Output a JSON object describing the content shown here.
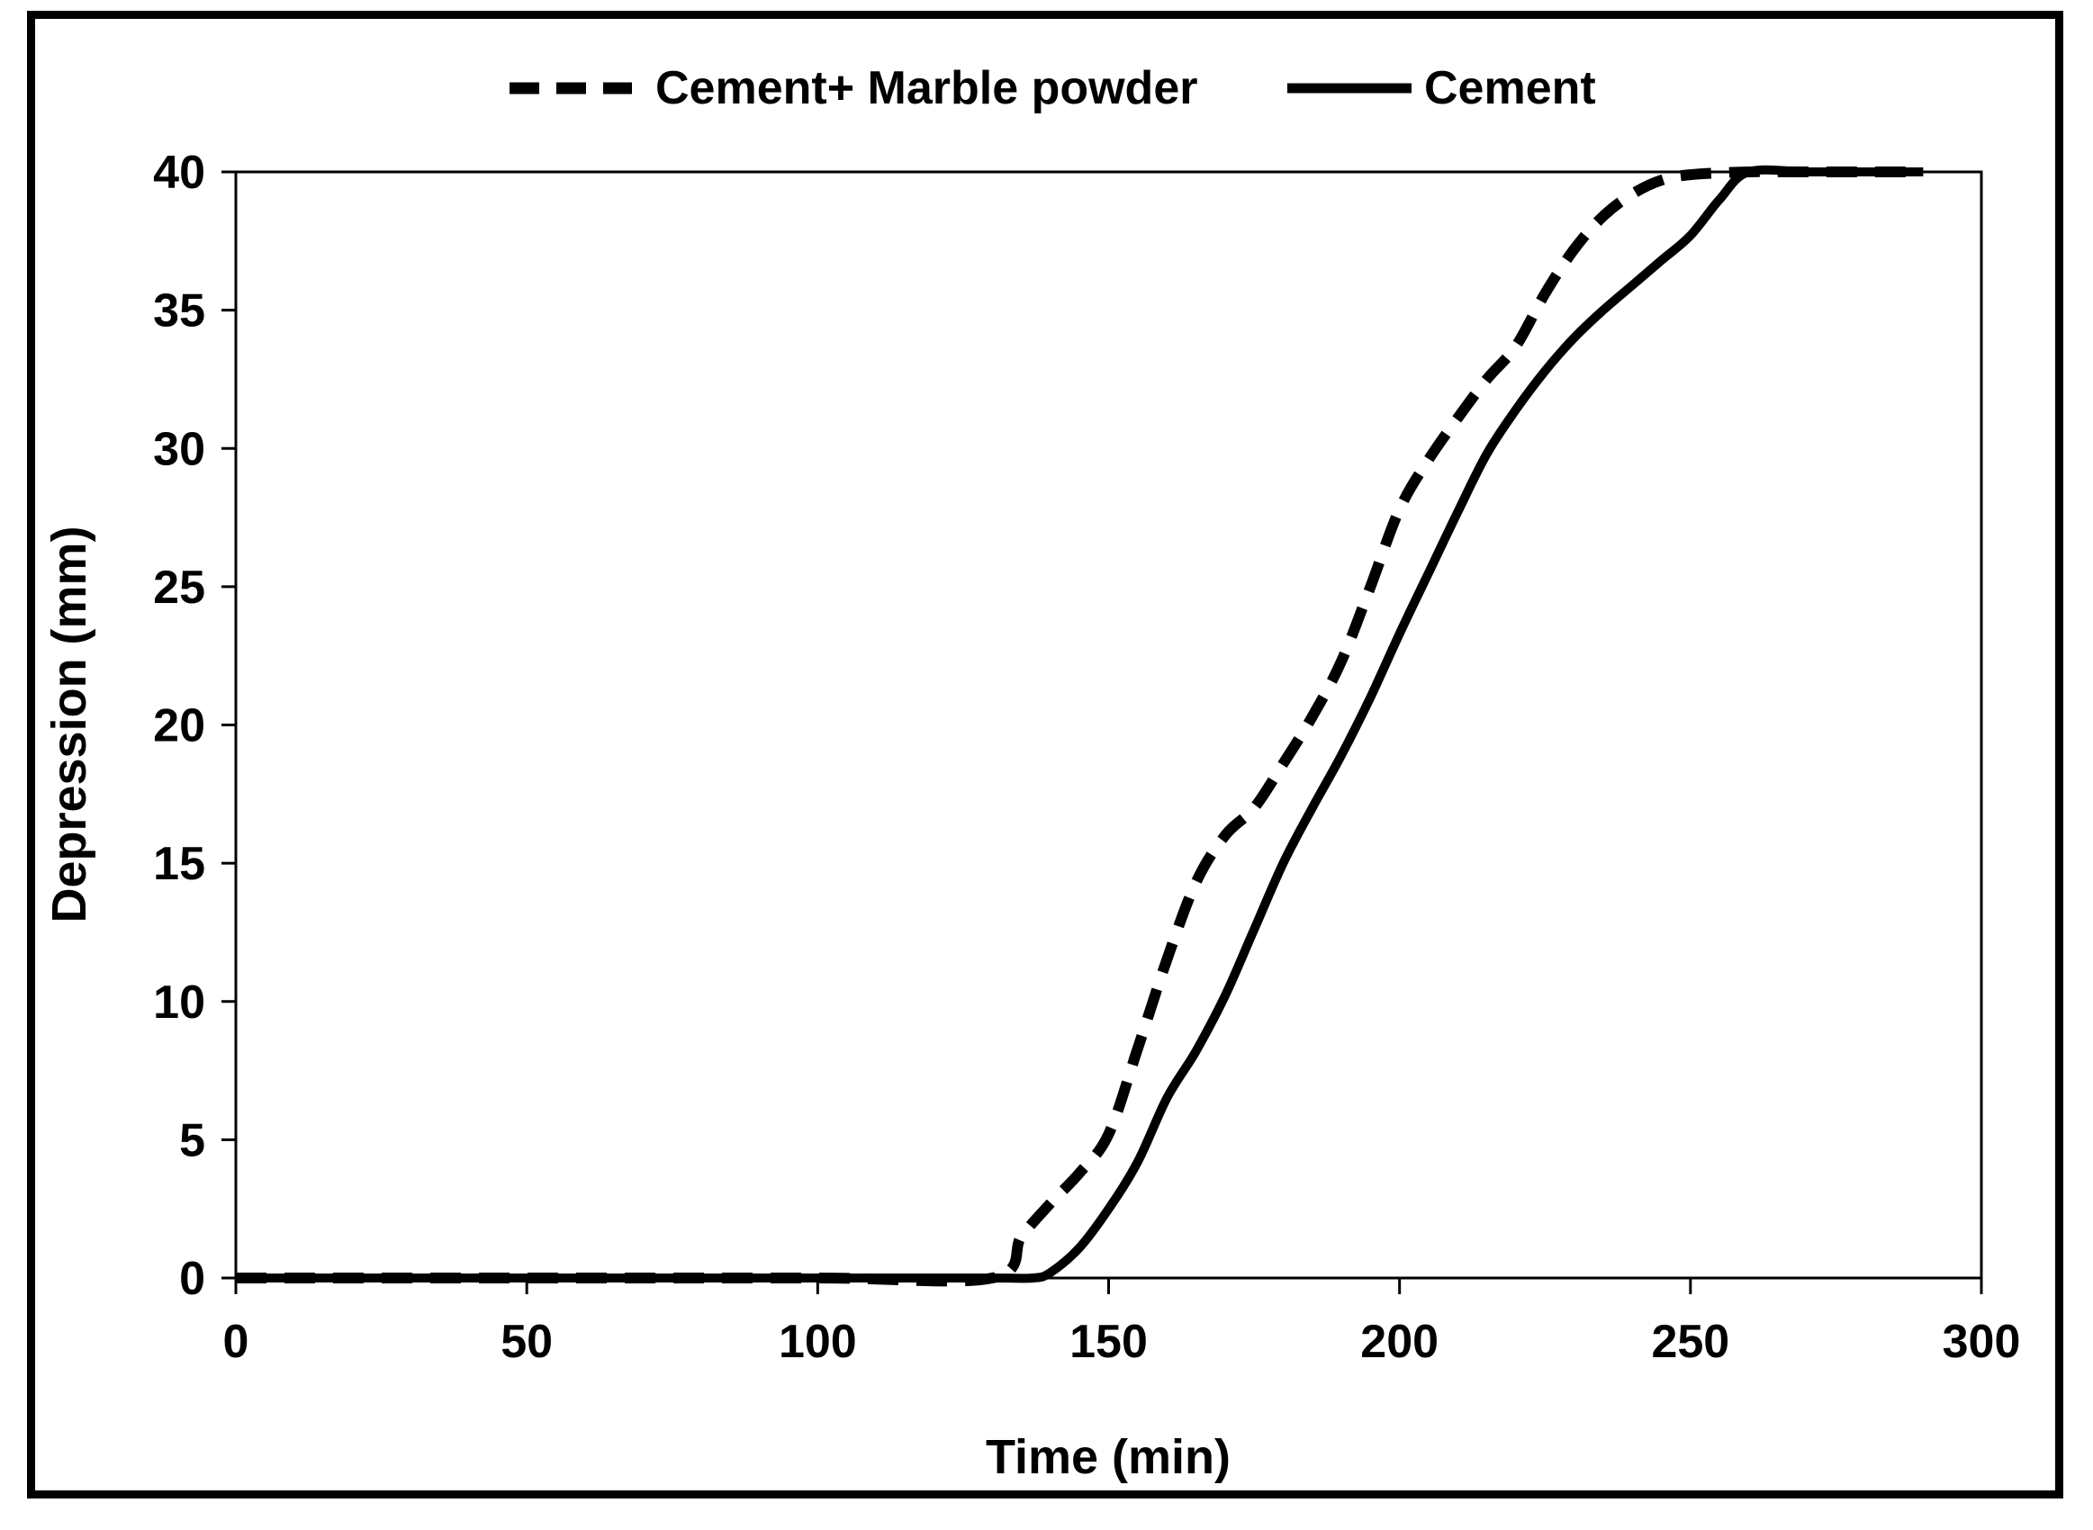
{
  "chart_data": {
    "type": "line",
    "title": "",
    "xlabel": "Time (min)",
    "ylabel": "Depression (mm)",
    "xlim": [
      0,
      300
    ],
    "ylim": [
      0,
      40
    ],
    "x_ticks": [
      "0",
      "50",
      "100",
      "150",
      "200",
      "250",
      "300"
    ],
    "y_ticks": [
      "0",
      "5",
      "10",
      "15",
      "20",
      "25",
      "30",
      "35",
      "40"
    ],
    "grid": false,
    "legend_position": "top-center",
    "series": [
      {
        "name": "Cement+ Marble powder",
        "style": "dashed",
        "color": "#000000",
        "points": [
          [
            0,
            0
          ],
          [
            50,
            0
          ],
          [
            100,
            0
          ],
          [
            130,
            0
          ],
          [
            135,
            1.5
          ],
          [
            140,
            2.7
          ],
          [
            145,
            3.8
          ],
          [
            150,
            5.2
          ],
          [
            155,
            8.3
          ],
          [
            160,
            11.5
          ],
          [
            165,
            14.3
          ],
          [
            170,
            16
          ],
          [
            175,
            17
          ],
          [
            180,
            18.6
          ],
          [
            185,
            20.3
          ],
          [
            190,
            22.3
          ],
          [
            195,
            25
          ],
          [
            200,
            27.8
          ],
          [
            205,
            29.6
          ],
          [
            210,
            31.1
          ],
          [
            215,
            32.5
          ],
          [
            220,
            33.7
          ],
          [
            225,
            35.6
          ],
          [
            230,
            37.2
          ],
          [
            235,
            38.4
          ],
          [
            240,
            39.2
          ],
          [
            245,
            39.7
          ],
          [
            250,
            39.9
          ],
          [
            260,
            40
          ],
          [
            270,
            40
          ],
          [
            280,
            40
          ],
          [
            290,
            40
          ]
        ]
      },
      {
        "name": "Cement",
        "style": "solid",
        "color": "#000000",
        "points": [
          [
            0,
            0
          ],
          [
            50,
            0
          ],
          [
            100,
            0
          ],
          [
            130,
            0
          ],
          [
            137,
            0
          ],
          [
            140,
            0.2
          ],
          [
            145,
            1.1
          ],
          [
            150,
            2.5
          ],
          [
            155,
            4.2
          ],
          [
            160,
            6.5
          ],
          [
            165,
            8.2
          ],
          [
            170,
            10.2
          ],
          [
            175,
            12.6
          ],
          [
            180,
            15
          ],
          [
            185,
            17
          ],
          [
            190,
            18.9
          ],
          [
            195,
            21
          ],
          [
            200,
            23.3
          ],
          [
            205,
            25.5
          ],
          [
            210,
            27.7
          ],
          [
            215,
            29.8
          ],
          [
            220,
            31.4
          ],
          [
            225,
            32.8
          ],
          [
            230,
            34
          ],
          [
            235,
            35
          ],
          [
            240,
            35.9
          ],
          [
            245,
            36.8
          ],
          [
            250,
            37.7
          ],
          [
            255,
            39
          ],
          [
            260,
            40
          ],
          [
            270,
            40
          ],
          [
            280,
            40
          ],
          [
            290,
            40
          ]
        ]
      }
    ]
  }
}
